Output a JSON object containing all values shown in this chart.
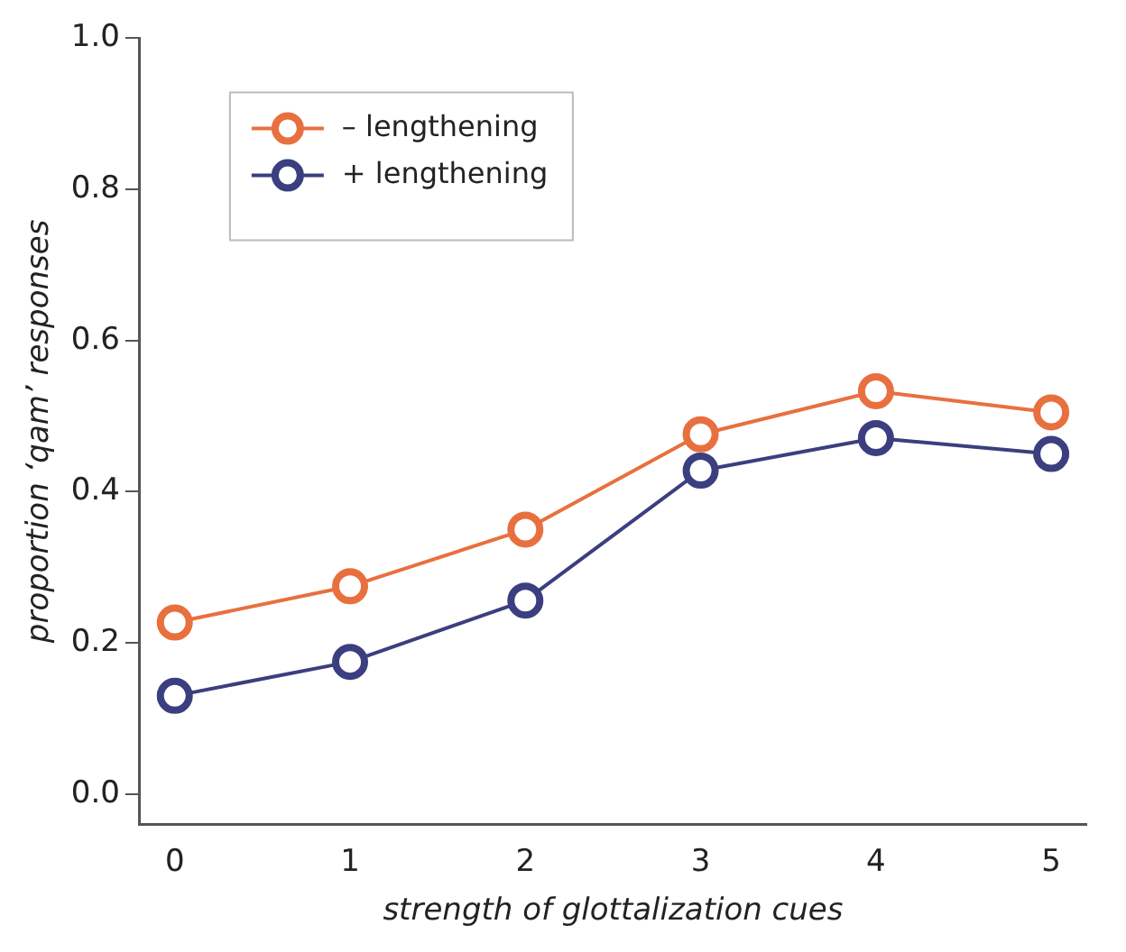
{
  "chart_data": {
    "type": "line",
    "xlabel": "strength of glottalization cues",
    "ylabel": "proportion ‘qam’ responses",
    "x": [
      0,
      1,
      2,
      3,
      4,
      5
    ],
    "series": [
      {
        "name": "– lengthening",
        "color": "#e8703f",
        "values": [
          0.227,
          0.275,
          0.35,
          0.476,
          0.533,
          0.505
        ]
      },
      {
        "name": "+ lengthening",
        "color": "#3b3f7f",
        "values": [
          0.13,
          0.175,
          0.256,
          0.428,
          0.471,
          0.45
        ]
      }
    ],
    "xlim": [
      -0.2,
      5.2
    ],
    "xticks": [
      0,
      1,
      2,
      3,
      4,
      5
    ],
    "ylim": [
      -0.04,
      1.0
    ],
    "yticks": [
      {
        "value": 0,
        "label": "0.0"
      },
      {
        "value": 0.2,
        "label": "0.2"
      },
      {
        "value": 0.4,
        "label": "0.4"
      },
      {
        "value": 0.6,
        "label": "0.6"
      },
      {
        "value": 0.8,
        "label": "0.8"
      },
      {
        "value": 1.0,
        "label": "1.0"
      }
    ],
    "grid": false,
    "legend": "top left",
    "marker": "circle",
    "line_style": "solid"
  }
}
